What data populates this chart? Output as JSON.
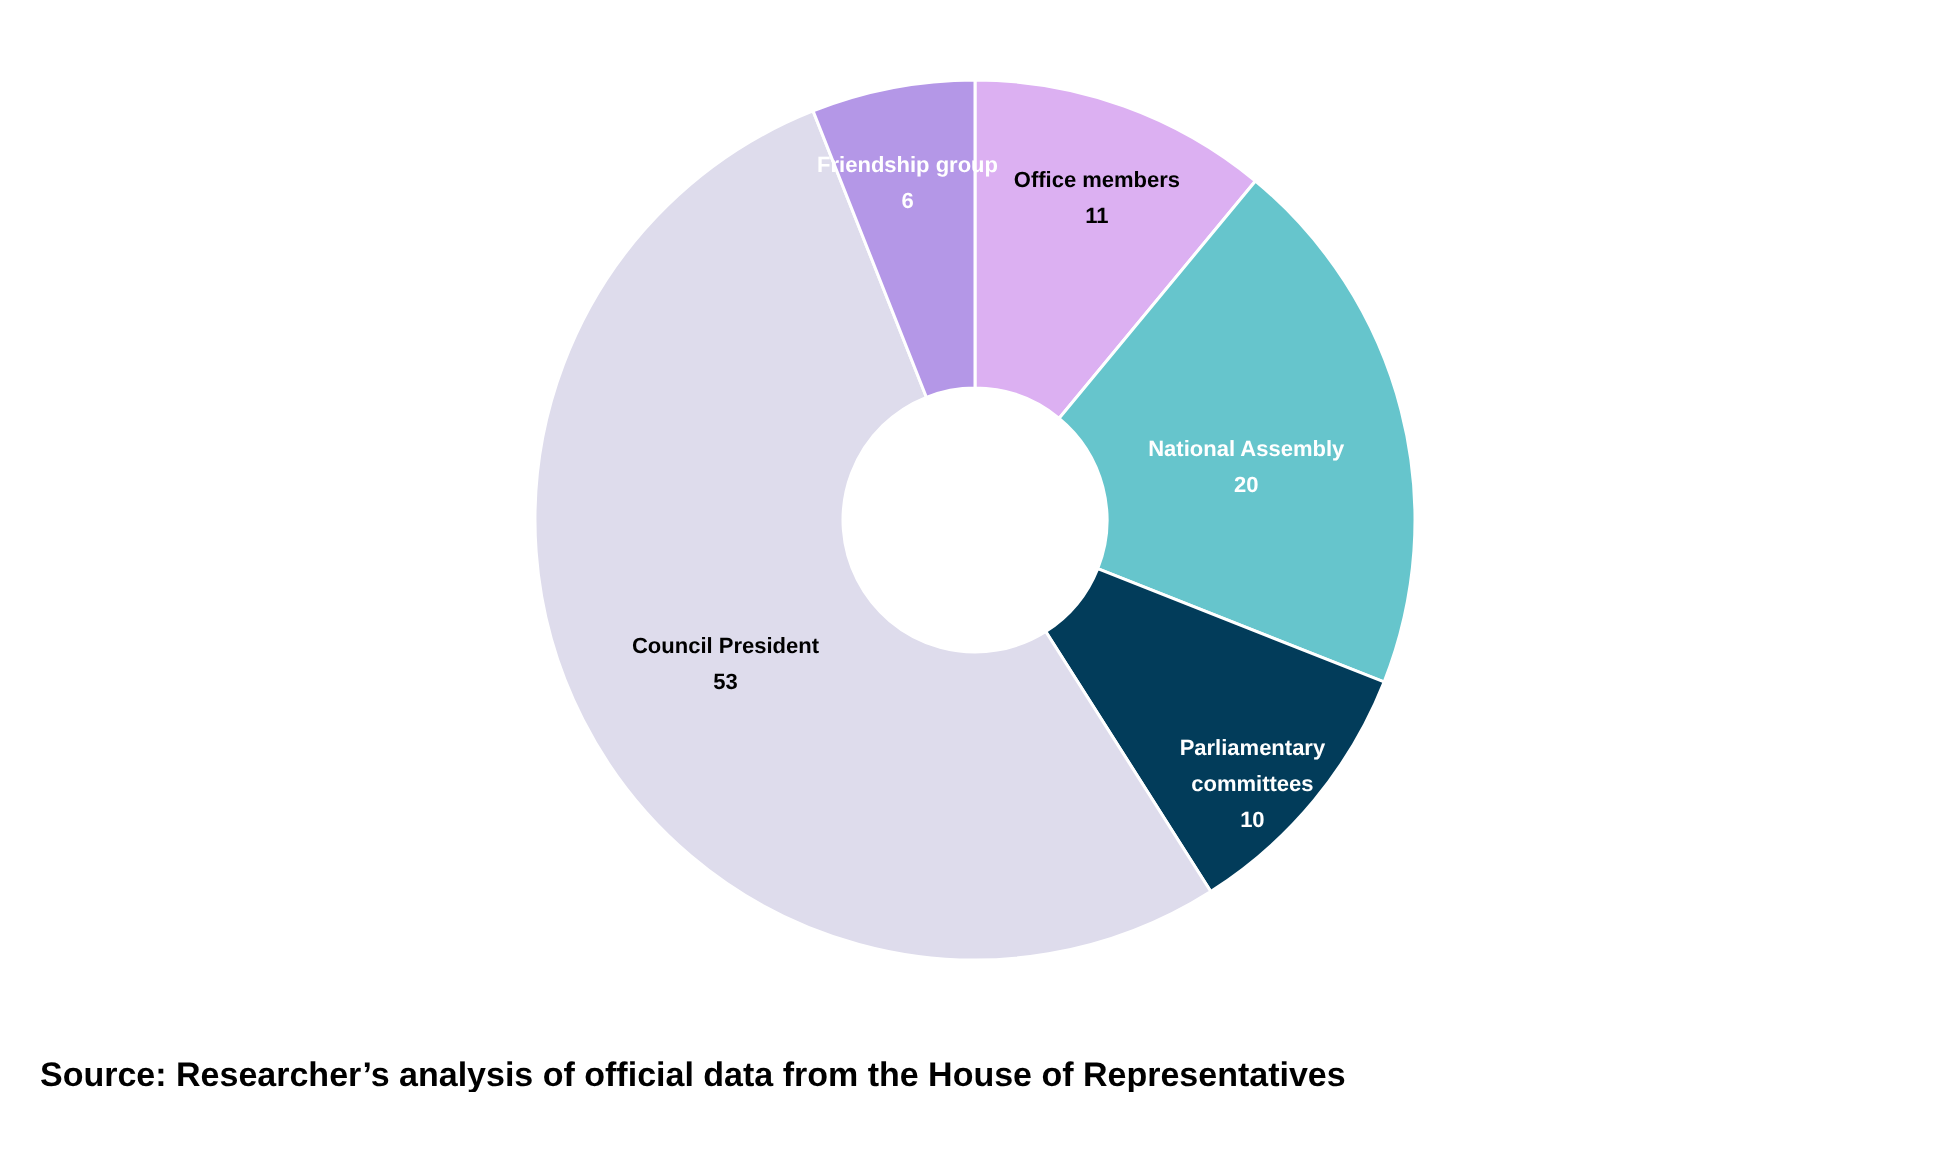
{
  "chart_data": {
    "type": "donut",
    "categories": [
      "Office members",
      "National Assembly",
      "Parliamentary committees",
      "Council President",
      "Friendship group"
    ],
    "values": [
      11,
      20,
      10,
      53,
      6
    ],
    "colors": [
      "#dcb0f2",
      "#66c5cc",
      "#023c5a",
      "#dedcec",
      "#b497e7"
    ],
    "data_labels": true,
    "legend": false,
    "annotations": [
      "Source: Researcher’s analysis of official data from the House of Representatives"
    ]
  }
}
